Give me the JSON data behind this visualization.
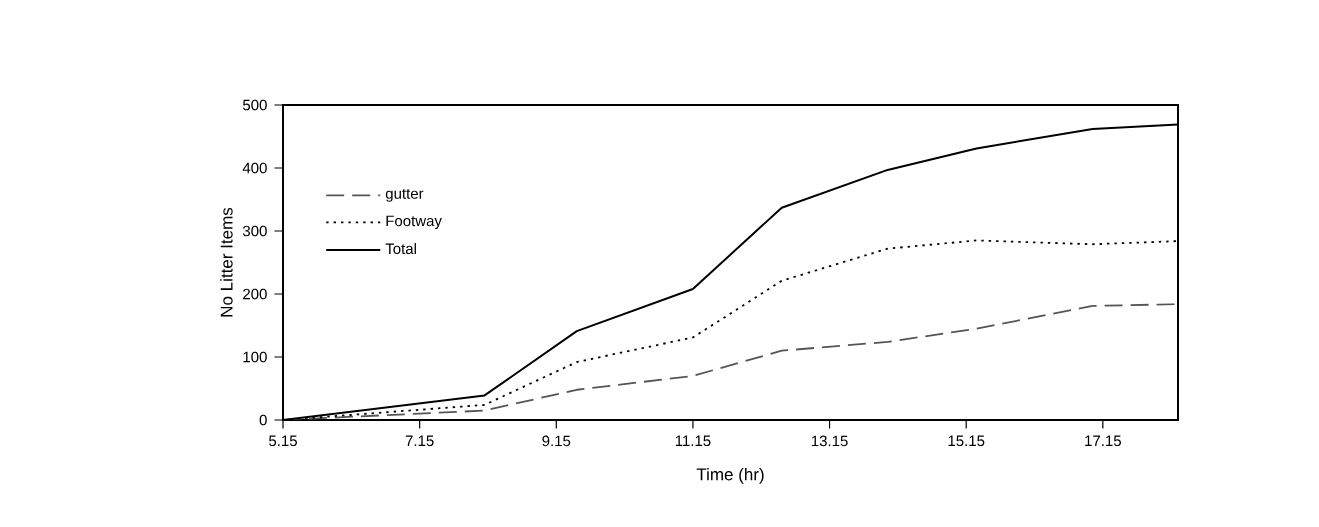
{
  "chart_data": {
    "type": "line",
    "xlabel": "Time (hr)",
    "ylabel": "No Litter Items",
    "x": [
      5.15,
      8.1,
      9.45,
      11.15,
      12.45,
      14.0,
      15.3,
      17.0,
      18.25
    ],
    "series": [
      {
        "name": "gutter",
        "color": "#555555",
        "line_style": "dashed",
        "values": [
          0,
          15,
          48,
          70,
          110,
          124,
          145,
          181,
          184
        ]
      },
      {
        "name": "Footway",
        "color": "#000000",
        "line_style": "dotted",
        "values": [
          0,
          24,
          92,
          131,
          221,
          272,
          285,
          279,
          284
        ]
      },
      {
        "name": "Total",
        "color": "#000000",
        "line_style": "solid",
        "values": [
          0,
          39,
          141,
          208,
          337,
          397,
          431,
          462,
          469
        ]
      }
    ],
    "xlim": [
      5.15,
      18.25
    ],
    "xticks": [
      5.15,
      7.15,
      9.15,
      11.15,
      13.15,
      15.15,
      17.15
    ],
    "ylim": [
      0,
      500
    ],
    "yticks": [
      0,
      100,
      200,
      300,
      400,
      500
    ],
    "grid": false,
    "legend": "top left",
    "marker": "none"
  }
}
